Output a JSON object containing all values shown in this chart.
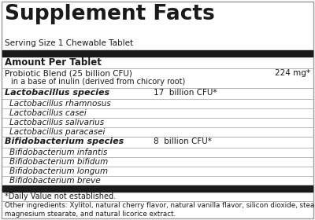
{
  "title": "Supplement Facts",
  "serving_size": "Serving Size 1 Chewable Tablet",
  "amount_per_tablet": "Amount Per Tablet",
  "probiotic_blend": "Probiotic Blend (25 billion CFU)",
  "probiotic_blend_value": "224 mg*",
  "inulin_note": "    in a base of inulin (derived from chicory root)",
  "lacto_header": "Lactobacillus species",
  "lacto_value": "17  billion CFU*",
  "lacto_species": [
    "Lactobacillus rhamnosus",
    "Lactobacillus casei",
    "Lactobacillus salivarius",
    "Lactobacillus paracasei"
  ],
  "bifido_header": "Bifidobacterium species",
  "bifido_value": "8  billion CFU*",
  "bifido_species": [
    "Bifidobacterium infantis",
    "Bifidobacterium bifidum",
    "Bifidobacterium longum",
    "Bifidobacterium breve"
  ],
  "daily_value_note": "*Daily Value not established.",
  "other_ingredients": "Other ingredients: Xylitol, natural cherry flavor, natural vanilla flavor, silicon dioxide, stearic acid,\nmagnesium stearate, and natural licorice extract.",
  "bg_color": "#ffffff",
  "thick_bar_color": "#1a1a1a",
  "thin_line_color": "#b0b0b0",
  "text_color": "#1a1a1a",
  "outer_border_color": "#999999"
}
